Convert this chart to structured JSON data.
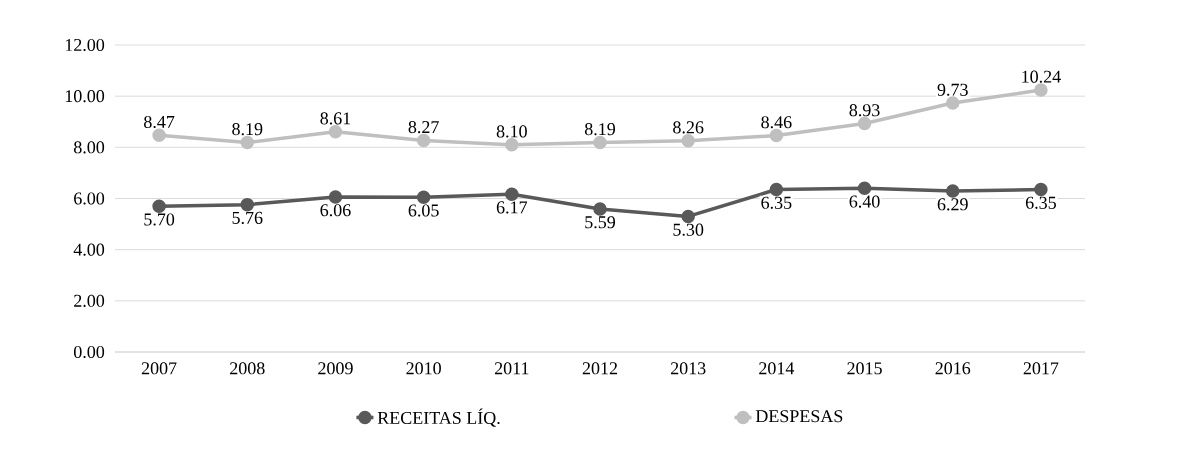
{
  "chart_data": {
    "type": "line",
    "categories": [
      "2007",
      "2008",
      "2009",
      "2010",
      "2011",
      "2012",
      "2013",
      "2014",
      "2015",
      "2016",
      "2017"
    ],
    "series": [
      {
        "name": "RECEITAS LÍQ.",
        "color": "#595959",
        "values": [
          5.7,
          5.76,
          6.06,
          6.05,
          6.17,
          5.59,
          5.3,
          6.35,
          6.4,
          6.29,
          6.35
        ],
        "value_labels": [
          "5.70",
          "5.76",
          "6.06",
          "6.05",
          "6.17",
          "5.59",
          "5.30",
          "6.35",
          "6.40",
          "6.29",
          "6.35"
        ]
      },
      {
        "name": "DESPESAS",
        "color": "#bfbfbf",
        "values": [
          8.47,
          8.19,
          8.61,
          8.27,
          8.1,
          8.19,
          8.26,
          8.46,
          8.93,
          9.73,
          10.24
        ],
        "value_labels": [
          "8.47",
          "8.19",
          "8.61",
          "8.27",
          "8.10",
          "8.19",
          "8.26",
          "8.46",
          "8.93",
          "9.73",
          "10.24"
        ]
      }
    ],
    "ylim": [
      0,
      12
    ],
    "yticks": [
      {
        "value": 0,
        "label": "0.00"
      },
      {
        "value": 2,
        "label": "2.00"
      },
      {
        "value": 4,
        "label": "4.00"
      },
      {
        "value": 6,
        "label": "6.00"
      },
      {
        "value": 8,
        "label": "8.00"
      },
      {
        "value": 10,
        "label": "10.00"
      },
      {
        "value": 12,
        "label": "12.00"
      }
    ],
    "grid": "y",
    "legend": "bottom",
    "marker": "circle",
    "line_style": "solid"
  }
}
